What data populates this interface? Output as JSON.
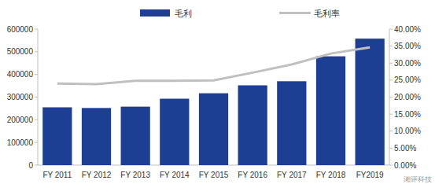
{
  "chart_data": {
    "type": "bar",
    "categories": [
      "FY 2011",
      "FY 2012",
      "FY 2013",
      "FY 2014",
      "FY 2015",
      "FY 2016",
      "FY 2017",
      "FY 2018",
      "FY2019"
    ],
    "series": [
      {
        "name": "毛利",
        "type": "bar",
        "color": "#1c3f94",
        "values": [
          255000,
          252000,
          258000,
          293000,
          317000,
          352000,
          370000,
          480000,
          558000
        ]
      },
      {
        "name": "毛利率",
        "type": "line",
        "color": "#c0c0c0",
        "axis": "y2",
        "values": [
          24.0,
          23.8,
          24.8,
          24.8,
          24.9,
          27.2,
          29.6,
          32.8,
          34.6
        ]
      }
    ],
    "ylim": [
      0,
      600000
    ],
    "yticks": [
      0,
      100000,
      200000,
      300000,
      400000,
      500000,
      600000
    ],
    "y2lim": [
      0,
      40
    ],
    "y2ticks": [
      {
        "value": 0,
        "label": "0.00%"
      },
      {
        "value": 5,
        "label": "5.00%"
      },
      {
        "value": 10,
        "label": "10.00%"
      },
      {
        "value": 15,
        "label": "15.00%"
      },
      {
        "value": 20,
        "label": "20.00%"
      },
      {
        "value": 25,
        "label": "25.00%"
      },
      {
        "value": 30,
        "label": "30.00%"
      },
      {
        "value": 35,
        "label": "35.00%"
      },
      {
        "value": 40,
        "label": "40.00%"
      }
    ],
    "grid": false,
    "legend": "top",
    "annotations": [
      "湘评科技"
    ]
  }
}
